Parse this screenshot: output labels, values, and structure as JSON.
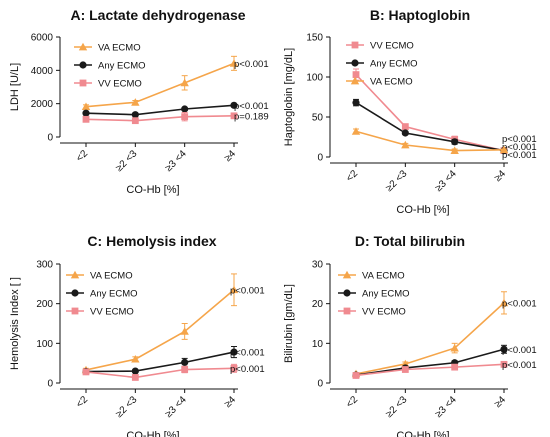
{
  "colors": {
    "va": "#F5A54A",
    "any": "#1a1a1a",
    "vv": "#F08A90",
    "axis": "#111111"
  },
  "chart_data": [
    {
      "type": "line",
      "title": "A: Lactate dehydrogenase",
      "xlabel": "CO-Hb [%]",
      "ylabel": "LDH [U/L]",
      "categories": [
        "<2",
        "≥2 <3",
        "≥3 <4",
        "≥4"
      ],
      "ylim": [
        0,
        6000
      ],
      "yticks": [
        0,
        2000,
        4000,
        6000
      ],
      "legend_order": [
        "VA ECMO",
        "Any ECMO",
        "VV ECMO"
      ],
      "series": [
        {
          "name": "VA ECMO",
          "color_key": "va",
          "marker": "triangle",
          "values": [
            1820,
            2080,
            3250,
            4420
          ],
          "errors": [
            110,
            110,
            430,
            420
          ],
          "pvalue": "p<0.001"
        },
        {
          "name": "Any ECMO",
          "color_key": "any",
          "marker": "circle",
          "values": [
            1430,
            1340,
            1680,
            1900
          ],
          "errors": [
            60,
            60,
            70,
            80
          ],
          "pvalue": "p<0.001"
        },
        {
          "name": "VV ECMO",
          "color_key": "vv",
          "marker": "square",
          "values": [
            1060,
            980,
            1220,
            1270
          ],
          "errors": [
            90,
            90,
            250,
            110
          ],
          "pvalue": "p=0.189"
        }
      ]
    },
    {
      "type": "line",
      "title": "B: Haptoglobin",
      "xlabel": "CO-Hb [%]",
      "ylabel": "Haptoglobin [mg/dL]",
      "categories": [
        "<2",
        "≥2 <3",
        "≥3 <4",
        "≥4"
      ],
      "ylim": [
        0,
        150
      ],
      "yticks": [
        0,
        50,
        100,
        150
      ],
      "legend_order": [
        "VV ECMO",
        "Any ECMO",
        "VA ECMO"
      ],
      "series": [
        {
          "name": "VV ECMO",
          "color_key": "vv",
          "marker": "square",
          "values": [
            103,
            38,
            22,
            8
          ],
          "errors": [
            7,
            3,
            4,
            2
          ],
          "pvalue": "p<0.001"
        },
        {
          "name": "Any ECMO",
          "color_key": "any",
          "marker": "circle",
          "values": [
            68,
            30,
            19,
            8
          ],
          "errors": [
            4,
            2,
            3,
            1
          ],
          "pvalue": "p<0.001"
        },
        {
          "name": "VA ECMO",
          "color_key": "va",
          "marker": "triangle",
          "values": [
            32,
            15,
            8,
            9
          ],
          "errors": [
            3,
            2,
            2,
            1
          ],
          "pvalue": "p<0.001"
        }
      ]
    },
    {
      "type": "line",
      "title": "C: Hemolysis index",
      "xlabel": "CO-Hb [%]",
      "ylabel": "Hemolysis Index [ ]",
      "categories": [
        "<2",
        "≥2 <3",
        "≥3 <4",
        "≥4"
      ],
      "ylim": [
        0,
        300
      ],
      "yticks": [
        0,
        100,
        200,
        300
      ],
      "legend_order": [
        "VA ECMO",
        "Any ECMO",
        "VV ECMO"
      ],
      "series": [
        {
          "name": "VA ECMO",
          "color_key": "va",
          "marker": "triangle",
          "values": [
            33,
            60,
            130,
            235
          ],
          "errors": [
            4,
            6,
            20,
            40
          ],
          "pvalue": "p<0.001"
        },
        {
          "name": "Any ECMO",
          "color_key": "any",
          "marker": "circle",
          "values": [
            29,
            30,
            52,
            78
          ],
          "errors": [
            3,
            3,
            10,
            14
          ],
          "pvalue": "p<0.001"
        },
        {
          "name": "VV ECMO",
          "color_key": "vv",
          "marker": "square",
          "values": [
            28,
            14,
            34,
            37
          ],
          "errors": [
            3,
            3,
            8,
            10
          ],
          "pvalue": "p<0.001"
        }
      ]
    },
    {
      "type": "line",
      "title": "D: Total bilirubin",
      "xlabel": "CO-Hb [%]",
      "ylabel": "Bilirubin [gm/dL]",
      "categories": [
        "<2",
        "≥2 <3",
        "≥3 <4",
        "≥4"
      ],
      "ylim": [
        0,
        30
      ],
      "yticks": [
        0,
        10,
        20,
        30
      ],
      "legend_order": [
        "VA ECMO",
        "Any ECMO",
        "VV ECMO"
      ],
      "series": [
        {
          "name": "VA ECMO",
          "color_key": "va",
          "marker": "triangle",
          "values": [
            2.3,
            4.8,
            8.8,
            20.2
          ],
          "errors": [
            0.3,
            0.5,
            1.2,
            2.8
          ],
          "pvalue": "p<0.001"
        },
        {
          "name": "Any ECMO",
          "color_key": "any",
          "marker": "circle",
          "values": [
            2.0,
            3.8,
            5.1,
            8.5
          ],
          "errors": [
            0.2,
            0.3,
            0.5,
            1.0
          ],
          "pvalue": "p<0.001"
        },
        {
          "name": "VV ECMO",
          "color_key": "vv",
          "marker": "square",
          "values": [
            1.9,
            3.4,
            4.0,
            4.7
          ],
          "errors": [
            0.2,
            0.3,
            0.4,
            0.5
          ],
          "pvalue": "p<0.001"
        }
      ]
    }
  ]
}
